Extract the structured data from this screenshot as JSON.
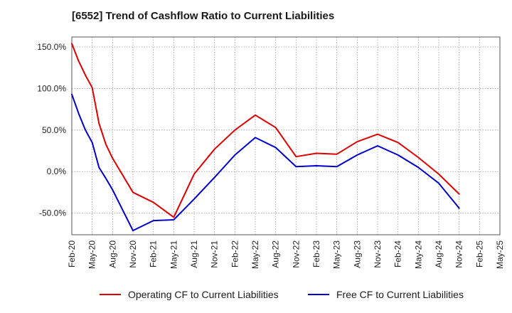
{
  "chart_data": {
    "type": "line",
    "title": "[6552]  Trend of Cashflow Ratio to Current Liabilities",
    "xlabel": "",
    "ylabel": "",
    "x_ticks": [
      "Feb-20",
      "May-20",
      "Aug-20",
      "Nov-20",
      "Feb-21",
      "May-21",
      "Aug-21",
      "Nov-21",
      "Feb-22",
      "May-22",
      "Aug-22",
      "Nov-22",
      "Feb-23",
      "May-23",
      "Aug-23",
      "Nov-23",
      "Feb-24",
      "May-24",
      "Aug-24",
      "Nov-24",
      "Feb-25",
      "May-25"
    ],
    "y_ticks": [
      "150.0%",
      "100.0%",
      "50.0%",
      "0.0%",
      "-50.0%"
    ],
    "y_tick_values": [
      150,
      100,
      50,
      0,
      -50
    ],
    "ylim": [
      -76,
      162
    ],
    "xlim": [
      "Feb-20",
      "May-25"
    ],
    "grid": true,
    "legend_position": "bottom",
    "series": [
      {
        "name": "Operating CF to Current Liabilities",
        "color": "#e00000",
        "points": [
          [
            "Feb-20",
            154
          ],
          [
            "Mar-20",
            133
          ],
          [
            "Apr-20",
            116
          ],
          [
            "May-20",
            101
          ],
          [
            "Jun-20",
            58
          ],
          [
            "Jul-20",
            33
          ],
          [
            "Aug-20",
            16
          ],
          [
            "Nov-20",
            -25
          ],
          [
            "Feb-21",
            -37
          ],
          [
            "May-21",
            -55
          ],
          [
            "Aug-21",
            -3
          ],
          [
            "Nov-21",
            27
          ],
          [
            "Feb-22",
            50
          ],
          [
            "May-22",
            68
          ],
          [
            "Aug-22",
            53
          ],
          [
            "Nov-22",
            18
          ],
          [
            "Feb-23",
            22
          ],
          [
            "May-23",
            21
          ],
          [
            "Aug-23",
            36
          ],
          [
            "Nov-23",
            45
          ],
          [
            "Feb-24",
            35
          ],
          [
            "May-24",
            17
          ],
          [
            "Aug-24",
            -3
          ],
          [
            "Nov-24",
            -27
          ]
        ]
      },
      {
        "name": "Free CF to Current Liabilities",
        "color": "#0000d0",
        "points": [
          [
            "Feb-20",
            93
          ],
          [
            "Mar-20",
            70
          ],
          [
            "Apr-20",
            50
          ],
          [
            "May-20",
            35
          ],
          [
            "Jun-20",
            5
          ],
          [
            "Jul-20",
            -8
          ],
          [
            "Aug-20",
            -22
          ],
          [
            "Nov-20",
            -71
          ],
          [
            "Feb-21",
            -59
          ],
          [
            "May-21",
            -58
          ],
          [
            "Aug-21",
            -33
          ],
          [
            "Nov-21",
            -7
          ],
          [
            "Feb-22",
            20
          ],
          [
            "May-22",
            41
          ],
          [
            "Aug-22",
            29
          ],
          [
            "Nov-22",
            6
          ],
          [
            "Feb-23",
            7
          ],
          [
            "May-23",
            6
          ],
          [
            "Aug-23",
            20
          ],
          [
            "Nov-23",
            31
          ],
          [
            "Feb-24",
            20
          ],
          [
            "May-24",
            5
          ],
          [
            "Aug-24",
            -14
          ],
          [
            "Nov-24",
            -44
          ]
        ]
      }
    ]
  }
}
